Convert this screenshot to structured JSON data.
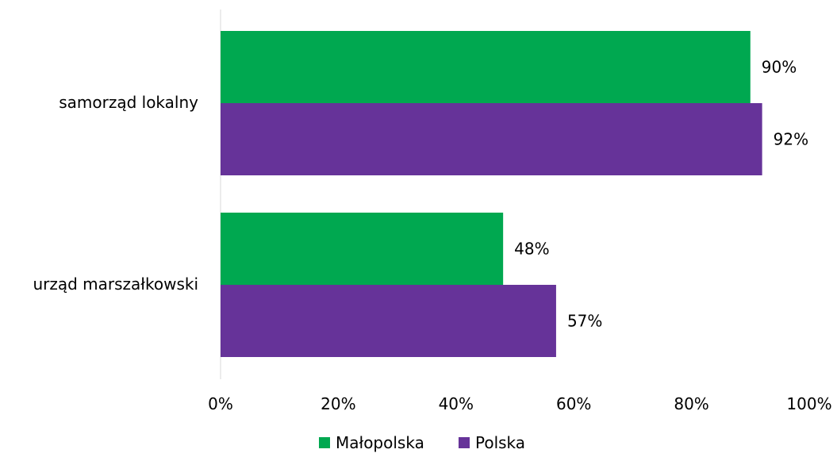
{
  "chart_data": {
    "type": "bar",
    "orientation": "horizontal",
    "categories": [
      "samorząd lokalny",
      "urząd marszałkowski"
    ],
    "series": [
      {
        "name": "Małopolska",
        "values": [
          90,
          48
        ],
        "labels": [
          "90%",
          "48%"
        ],
        "color": "#00A850"
      },
      {
        "name": "Polska",
        "values": [
          92,
          57
        ],
        "labels": [
          "92%",
          "57%"
        ],
        "color": "#663399"
      }
    ],
    "x_ticks": [
      "0%",
      "20%",
      "40%",
      "60%",
      "80%",
      "100%"
    ],
    "xlim": [
      0,
      100
    ],
    "grid": false,
    "legend": "bottom",
    "title": "",
    "xlabel": "",
    "ylabel": ""
  }
}
